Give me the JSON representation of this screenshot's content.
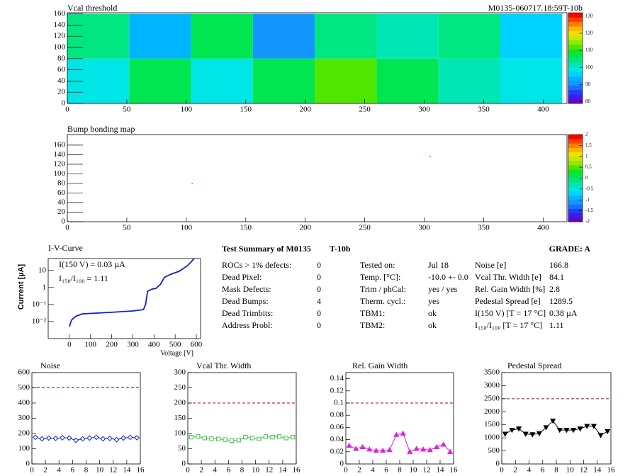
{
  "chart_data": [
    {
      "type": "heatmap",
      "title": "Vcal threshold",
      "subtitle": "M0135-060717.18:59T-10b",
      "xbins": [
        0,
        52,
        104,
        156,
        208,
        260,
        312,
        364,
        416
      ],
      "ybins": [
        0,
        80,
        160
      ],
      "values": [
        [
          98,
          108,
          100,
          106,
          112,
          106,
          102,
          100
        ],
        [
          103,
          93,
          107,
          90,
          103,
          101,
          105,
          97
        ]
      ],
      "xlim": [
        0,
        420
      ],
      "ylim": [
        0,
        162
      ],
      "xticks": [
        0,
        50,
        100,
        150,
        200,
        250,
        300,
        350,
        400
      ],
      "yticks": [
        0,
        20,
        40,
        60,
        80,
        100,
        120,
        140,
        160
      ],
      "zlim": [
        79,
        132
      ],
      "zticks": [
        80,
        90,
        100,
        110,
        120,
        130
      ],
      "palette": [
        "#6a00d0",
        "#3c1ee8",
        "#2040ff",
        "#1e6cff",
        "#1496ff",
        "#00b4ff",
        "#00d2ff",
        "#00e6e6",
        "#00e6b4",
        "#00e680",
        "#00e650",
        "#10e620",
        "#50e600",
        "#90e800",
        "#c8e800",
        "#f0e000",
        "#ffb400",
        "#ff8000",
        "#ff4000",
        "#ff0000"
      ]
    },
    {
      "type": "pointmap",
      "title": "Bump bonding map",
      "x": [
        105,
        305
      ],
      "y": [
        80,
        137
      ],
      "z": [
        0,
        0
      ],
      "xlim": [
        0,
        420
      ],
      "ylim": [
        0,
        182
      ],
      "xticks": [
        0,
        50,
        100,
        150,
        200,
        250,
        300,
        350,
        400
      ],
      "yticks": [
        0,
        20,
        40,
        60,
        80,
        100,
        120,
        140,
        160
      ],
      "zlim": [
        -2,
        2
      ],
      "zticks": [
        -2,
        -1.5,
        -1,
        -0.5,
        0,
        0.5,
        1,
        1.5,
        2
      ],
      "palette": [
        "#6a00d0",
        "#3c1ee8",
        "#2040ff",
        "#1e6cff",
        "#1496ff",
        "#00b4ff",
        "#00d2ff",
        "#00e6e6",
        "#00e6b4",
        "#00e680",
        "#00e650",
        "#10e620",
        "#50e600",
        "#90e800",
        "#c8e800",
        "#f0e000",
        "#ffb400",
        "#ff8000",
        "#ff4000",
        "#ff0000"
      ]
    },
    {
      "type": "line",
      "title": "I-V-Curve",
      "xlabel": "Voltage [V]",
      "ylabel": "Current [µA]",
      "log_y": true,
      "color": "#1020d0",
      "annotations": [
        "I(150 V) = 0.03 µA",
        "I₁₅₀/I₁₀₀ =  1.11"
      ],
      "x": [
        0,
        10,
        30,
        60,
        100,
        200,
        300,
        350,
        360,
        370,
        390,
        410,
        430,
        450,
        480,
        520,
        560,
        590
      ],
      "values": [
        0.005,
        0.012,
        0.02,
        0.028,
        0.03,
        0.035,
        0.042,
        0.05,
        0.1,
        0.6,
        0.8,
        0.9,
        1.5,
        4,
        6,
        9,
        20,
        50
      ],
      "xlim": [
        -100,
        620
      ],
      "ylim": [
        0.001,
        50
      ],
      "xticks": [
        0,
        100,
        200,
        300,
        400,
        500,
        600
      ],
      "yticks": [
        {
          "value": 0.01,
          "label": "10⁻²"
        },
        {
          "value": 0.1,
          "label": "10⁻¹"
        },
        1,
        10
      ]
    },
    {
      "type": "line",
      "title": "Noise",
      "marker": "diamond",
      "color": "#1020d0",
      "limit": 500,
      "limit_color": "#c00000",
      "x": [
        0.5,
        1.5,
        2.5,
        3.5,
        4.5,
        5.5,
        6.5,
        7.5,
        8.5,
        9.5,
        10.5,
        11.5,
        12.5,
        13.5,
        14.5,
        15.5
      ],
      "values": [
        175,
        165,
        170,
        168,
        172,
        170,
        155,
        165,
        170,
        175,
        165,
        168,
        160,
        170,
        175,
        172
      ],
      "xlim": [
        0,
        16
      ],
      "ylim": [
        0,
        600
      ],
      "xticks": [
        0,
        2,
        4,
        6,
        8,
        10,
        12,
        14,
        16
      ],
      "yticks": [
        0,
        100,
        200,
        300,
        400,
        500,
        600
      ]
    },
    {
      "type": "line",
      "title": "Vcal Thr. Width",
      "marker": "square",
      "color": "#40c040",
      "limit": 200,
      "limit_color": "#c00000",
      "x": [
        0.5,
        1.5,
        2.5,
        3.5,
        4.5,
        5.5,
        6.5,
        7.5,
        8.5,
        9.5,
        10.5,
        11.5,
        12.5,
        13.5,
        14.5,
        15.5
      ],
      "values": [
        88,
        90,
        85,
        83,
        82,
        80,
        77,
        78,
        88,
        85,
        82,
        90,
        88,
        90,
        85,
        88
      ],
      "xlim": [
        0,
        16
      ],
      "ylim": [
        0,
        300
      ],
      "xticks": [
        0,
        2,
        4,
        6,
        8,
        10,
        12,
        14,
        16
      ],
      "yticks": [
        0,
        50,
        100,
        150,
        200,
        250,
        300
      ]
    },
    {
      "type": "line",
      "title": "Rel. Gain Width",
      "marker": "triangle-up",
      "color": "#e020e0",
      "limit": 0.1,
      "limit_color": "#c00000",
      "x": [
        0.5,
        1.5,
        2.5,
        3.5,
        4.5,
        5.5,
        6.5,
        7.5,
        8.5,
        9.5,
        10.5,
        11.5,
        12.5,
        13.5,
        14.5,
        15.5
      ],
      "values": [
        0.03,
        0.025,
        0.028,
        0.024,
        0.022,
        0.022,
        0.023,
        0.048,
        0.05,
        0.02,
        0.025,
        0.024,
        0.023,
        0.028,
        0.032,
        0.02
      ],
      "xlim": [
        0,
        16
      ],
      "ylim": [
        0,
        0.15
      ],
      "xticks": [
        0,
        2,
        4,
        6,
        8,
        10,
        12,
        14,
        16
      ],
      "yticks": [
        0,
        0.02,
        0.04,
        0.06,
        0.08,
        0.1,
        0.12,
        0.14
      ]
    },
    {
      "type": "line",
      "title": "Pedestal Spread",
      "marker": "triangle-down",
      "color": "#000000",
      "limit": 2500,
      "limit_color": "#c00000",
      "x": [
        0.5,
        1.5,
        2.5,
        3.5,
        4.5,
        5.5,
        6.5,
        7.5,
        8.5,
        9.5,
        10.5,
        11.5,
        12.5,
        13.5,
        14.5,
        15.5
      ],
      "values": [
        1150,
        1300,
        1350,
        1150,
        1130,
        1170,
        1400,
        1650,
        1300,
        1300,
        1300,
        1350,
        1450,
        1450,
        1100,
        1250
      ],
      "xlim": [
        0,
        16
      ],
      "ylim": [
        0,
        3500
      ],
      "xticks": [
        0,
        2,
        4,
        6,
        8,
        10,
        12,
        14,
        16
      ],
      "yticks": [
        0,
        500,
        1000,
        1500,
        2000,
        2500,
        3000,
        3500
      ]
    }
  ],
  "summary": {
    "title": "Test Summary of M0135",
    "tag": "T-10b",
    "grade": "GRADE:  A",
    "defects": [
      [
        "ROCs > 1% defects:",
        0
      ],
      [
        "Dead Pixel:",
        0
      ],
      [
        "Mask Defects:",
        0
      ],
      [
        "Dead Bumps:",
        4
      ],
      [
        "Dead Trimbits:",
        0
      ],
      [
        "Address Probl:",
        0
      ]
    ],
    "conditions": [
      [
        "Tested on:",
        "Jul 18"
      ],
      [
        "Temp. [°C]:",
        "-10.0 +- 0.0"
      ],
      [
        "Trim / phCal:",
        "yes / yes"
      ],
      [
        "Therm. cycl.:",
        "yes"
      ],
      [
        "TBM1:",
        "ok"
      ],
      [
        "TBM2:",
        "ok"
      ]
    ],
    "results": [
      [
        "Noise [e]",
        166.8
      ],
      [
        "Vcal Thr. Width [e]",
        84.1
      ],
      [
        "Rel. Gain Width [%]",
        2.8
      ],
      [
        "Pedestal Spread [e]",
        1289.5
      ],
      [
        "I(150 V) [T = 17 °C]",
        "0.38 µA"
      ],
      [
        "I₁₅₀/I₁₀₀  [T = 17 °C]",
        1.11
      ]
    ]
  }
}
